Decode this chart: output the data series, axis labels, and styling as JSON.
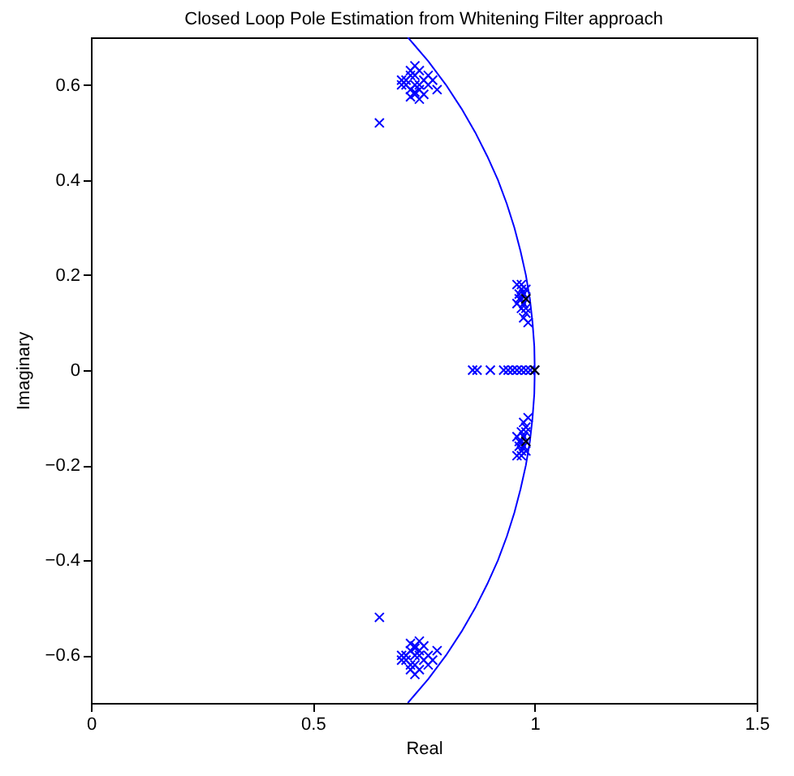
{
  "chart_data": {
    "type": "scatter",
    "title": "Closed Loop Pole Estimation from Whitening Filter approach",
    "xlabel": "Real",
    "ylabel": "Imaginary",
    "xlim": [
      0,
      1.5
    ],
    "xticks": [
      0,
      0.5,
      1,
      1.5
    ],
    "ylim": [
      -0.7,
      0.7
    ],
    "yticks": [
      -0.6,
      -0.4,
      -0.2,
      0,
      0.2,
      0.4,
      0.6
    ],
    "grid": false,
    "marker": "cross",
    "series": [
      {
        "type": "line",
        "marker": "none",
        "color": "#0000ff",
        "x": [
          0.714,
          0.76,
          0.8,
          0.835,
          0.866,
          0.893,
          0.917,
          0.937,
          0.954,
          0.968,
          0.98,
          0.989,
          0.995,
          0.999,
          1,
          0.999,
          0.995,
          0.989,
          0.98,
          0.968,
          0.954,
          0.937,
          0.917,
          0.893,
          0.866,
          0.835,
          0.8,
          0.76,
          0.714
        ],
        "values": [
          0.7,
          0.65,
          0.6,
          0.55,
          0.5,
          0.45,
          0.4,
          0.35,
          0.3,
          0.25,
          0.2,
          0.15,
          0.1,
          0.05,
          0,
          -0.05,
          -0.1,
          -0.15,
          -0.2,
          -0.25,
          -0.3,
          -0.35,
          -0.4,
          -0.45,
          -0.5,
          -0.55,
          -0.6,
          -0.65,
          -0.7
        ]
      },
      {
        "color": "#0000ff",
        "x": [
          0.7,
          0.71,
          0.72,
          0.73,
          0.74,
          0.75,
          0.76,
          0.72,
          0.73,
          0.74,
          0.71,
          0.75,
          0.73,
          0.72,
          0.74,
          0.76,
          0.7,
          0.73,
          0.77,
          0.74,
          0.72,
          0.73,
          0.65,
          0.78,
          0.7,
          0.71,
          0.72,
          0.73,
          0.74,
          0.75,
          0.76,
          0.72,
          0.73,
          0.74,
          0.71,
          0.75,
          0.73,
          0.72,
          0.74,
          0.76,
          0.7,
          0.73,
          0.77,
          0.74,
          0.72,
          0.73,
          0.65,
          0.78,
          0.96,
          0.97,
          0.98,
          0.965,
          0.975,
          0.97,
          0.98,
          0.96,
          0.97,
          0.975,
          0.98,
          0.985,
          0.97,
          0.965,
          0.98,
          0.975,
          0.96,
          0.97,
          0.98,
          0.965,
          0.975,
          0.97,
          0.98,
          0.96,
          0.97,
          0.975,
          0.98,
          0.985,
          0.97,
          0.965,
          0.98,
          0.975,
          0.86,
          0.87,
          0.9,
          0.93,
          0.94,
          0.95,
          0.96,
          0.97,
          0.98,
          0.99,
          1
        ],
        "values": [
          0.6,
          0.61,
          0.59,
          0.62,
          0.6,
          0.61,
          0.6,
          0.63,
          0.58,
          0.59,
          0.6,
          0.58,
          0.6,
          0.62,
          0.63,
          0.62,
          0.61,
          0.585,
          0.61,
          0.57,
          0.575,
          0.64,
          0.52,
          0.59,
          -0.6,
          -0.61,
          -0.59,
          -0.62,
          -0.6,
          -0.61,
          -0.6,
          -0.63,
          -0.58,
          -0.59,
          -0.6,
          -0.58,
          -0.6,
          -0.62,
          -0.63,
          -0.62,
          -0.61,
          -0.585,
          -0.61,
          -0.57,
          -0.575,
          -0.64,
          -0.52,
          -0.59,
          0.18,
          0.18,
          0.17,
          0.16,
          0.16,
          0.15,
          0.15,
          0.14,
          0.13,
          0.14,
          0.12,
          0.1,
          0.17,
          0.15,
          0.13,
          0.11,
          -0.18,
          -0.18,
          -0.17,
          -0.16,
          -0.16,
          -0.15,
          -0.15,
          -0.14,
          -0.13,
          -0.14,
          -0.12,
          -0.1,
          -0.17,
          -0.15,
          -0.13,
          -0.11,
          0,
          0,
          0,
          0,
          0,
          0,
          0,
          0,
          0,
          0,
          0
        ]
      },
      {
        "color": "#000000",
        "x": [
          0.98,
          1,
          0.98
        ],
        "values": [
          0.15,
          0,
          -0.15
        ]
      }
    ]
  }
}
